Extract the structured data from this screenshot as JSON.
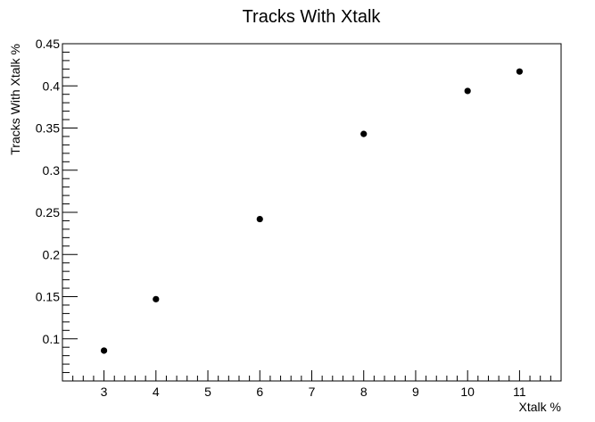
{
  "chart_data": {
    "type": "scatter",
    "title": "Tracks With Xtalk",
    "xlabel": "Xtalk %",
    "ylabel": "Tracks With Xtalk %",
    "xlim": [
      2.2,
      11.8
    ],
    "ylim": [
      0.05,
      0.45
    ],
    "x_ticks": [
      3,
      4,
      5,
      6,
      7,
      8,
      9,
      10,
      11
    ],
    "x_tick_labels": [
      "3",
      "4",
      "5",
      "6",
      "7",
      "8",
      "9",
      "10",
      "11"
    ],
    "y_ticks": [
      0.1,
      0.15,
      0.2,
      0.25,
      0.3,
      0.35,
      0.4,
      0.45
    ],
    "y_tick_labels": [
      "0.1",
      "0.15",
      "0.2",
      "0.25",
      "0.3",
      "0.35",
      "0.4",
      "0.45"
    ],
    "grid": false,
    "series": [
      {
        "x": [
          3,
          4,
          6,
          8,
          10,
          11
        ],
        "y": [
          0.086,
          0.147,
          0.242,
          0.343,
          0.394,
          0.417
        ]
      }
    ],
    "colors": {
      "marker": "#000000",
      "axis": "#000000"
    }
  }
}
